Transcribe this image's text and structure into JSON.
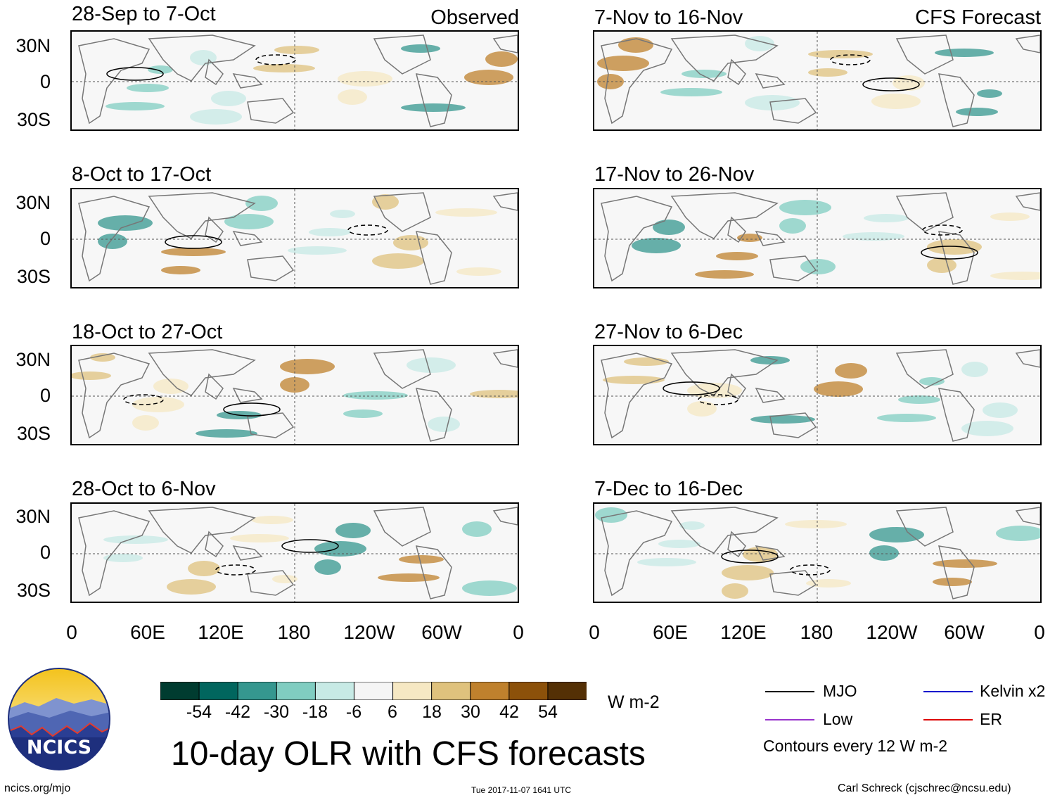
{
  "observed_label": "Observed",
  "forecast_label": "CFS Forecast",
  "observed_panels": [
    {
      "title": "28-Sep to 7-Oct"
    },
    {
      "title": "8-Oct to 17-Oct"
    },
    {
      "title": "18-Oct to 27-Oct"
    },
    {
      "title": "28-Oct to 6-Nov"
    }
  ],
  "forecast_panels": [
    {
      "title": "7-Nov to 16-Nov"
    },
    {
      "title": "17-Nov to 26-Nov"
    },
    {
      "title": "27-Nov to 6-Dec"
    },
    {
      "title": "7-Dec to 16-Dec"
    }
  ],
  "lat_labels": [
    "30N",
    "0",
    "30S"
  ],
  "lon_labels": [
    "0",
    "60E",
    "120E",
    "180",
    "120W",
    "60W",
    "0"
  ],
  "colorbar": {
    "ticks": [
      "-54",
      "-42",
      "-30",
      "-18",
      "-6",
      "6",
      "18",
      "30",
      "42",
      "54"
    ],
    "colors": [
      "#003c30",
      "#01665e",
      "#35978f",
      "#80cdc1",
      "#c7eae5",
      "#f5f5f5",
      "#f6e8c3",
      "#dfc27d",
      "#bf812d",
      "#8c510a",
      "#543005"
    ],
    "units": "W m-2"
  },
  "legend": {
    "items": [
      {
        "label": "MJO",
        "color": "#000000"
      },
      {
        "label": "Kelvin x2",
        "color": "#0000cc"
      },
      {
        "label": "Low",
        "color": "#9933cc"
      },
      {
        "label": "ER",
        "color": "#dd0000"
      }
    ],
    "contour_note": "Contours every 12 W m-2"
  },
  "logo_text": "NCICS",
  "main_title": "10-day OLR with CFS forecasts",
  "url": "ncics.org/mjo",
  "timestamp": "Tue 2017-11-07 1641 UTC",
  "author": "Carl Schreck (cjschrec@ncsu.edu)"
}
